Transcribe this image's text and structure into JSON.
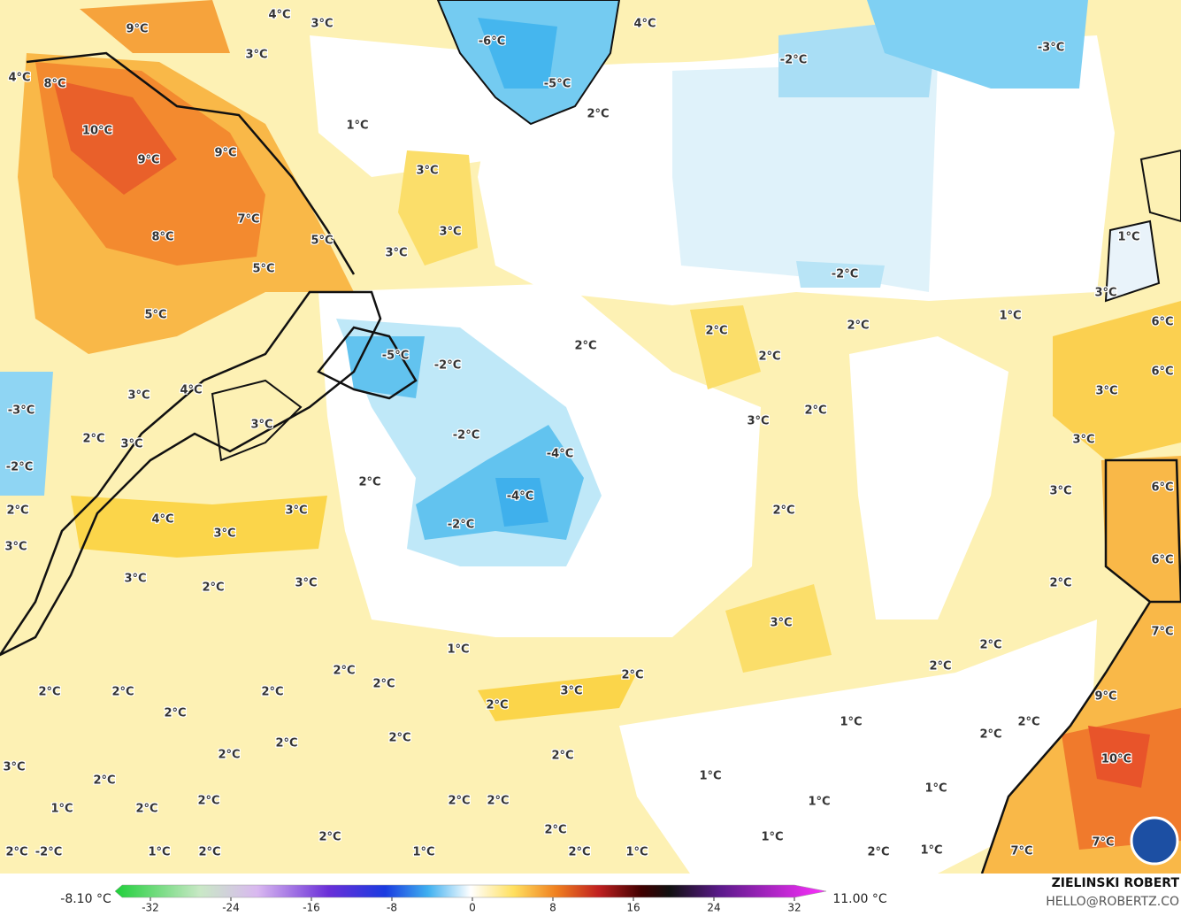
{
  "map": {
    "labels": [
      "4°C",
      "3°C",
      "9°C",
      "3°C",
      "4°C",
      "8°C",
      "-6°C",
      "4°C",
      "-5°C",
      "2°C",
      "-2°C",
      "-3°C",
      "1°C",
      "10°C",
      "9°C",
      "9°C",
      "3°C",
      "3°C",
      "3°C",
      "7°C",
      "8°C",
      "5°C",
      "5°C",
      "-2°C",
      "1°C",
      "3°C",
      "1°C",
      "5°C",
      "2°C",
      "2°C",
      "2°C",
      "-2°C",
      "-5°C",
      "2°C",
      "6°C",
      "6°C",
      "3°C",
      "4°C",
      "3°C",
      "-3°C",
      "3°C",
      "3°C",
      "2°C",
      "-2°C",
      "2°C",
      "3°C",
      "3°C",
      "-4°C",
      "-2°C",
      "2°C",
      "6°C",
      "3°C",
      "-4°C",
      "2°C",
      "3°C",
      "2°C",
      "4°C",
      "-2°C",
      "3°C",
      "3°C",
      "6°C",
      "3°C",
      "2°C",
      "3°C",
      "2°C",
      "3°C",
      "7°C",
      "1°C",
      "2°C",
      "2°C",
      "2°C",
      "2°C",
      "2°C",
      "2°C",
      "2°C",
      "2°C",
      "3°C",
      "2°C",
      "9°C",
      "2°C",
      "1°C",
      "2°C",
      "2°C",
      "2°C",
      "2°C",
      "2°C",
      "2°C",
      "10°C",
      "3°C",
      "1°C",
      "2°C",
      "1°C",
      "2°C",
      "2°C",
      "2°C",
      "1°C",
      "1°C",
      "2°C",
      "2°C",
      "2°C",
      "1°C",
      "7°C",
      "2°C",
      "-2°C",
      "1°C",
      "2°C",
      "1°C",
      "2°C",
      "1°C",
      "2°C",
      "1°C",
      "7°C"
    ],
    "colorbar": {
      "min_label": "-8.10 °C",
      "max_label": "11.00 °C",
      "ticks": [
        -32,
        -24,
        -16,
        -8,
        0,
        8,
        16,
        24,
        32
      ]
    },
    "credit": {
      "name": "ZIELINSKI ROBERT",
      "email": "HELLO@ROBERTZ.CO"
    }
  }
}
